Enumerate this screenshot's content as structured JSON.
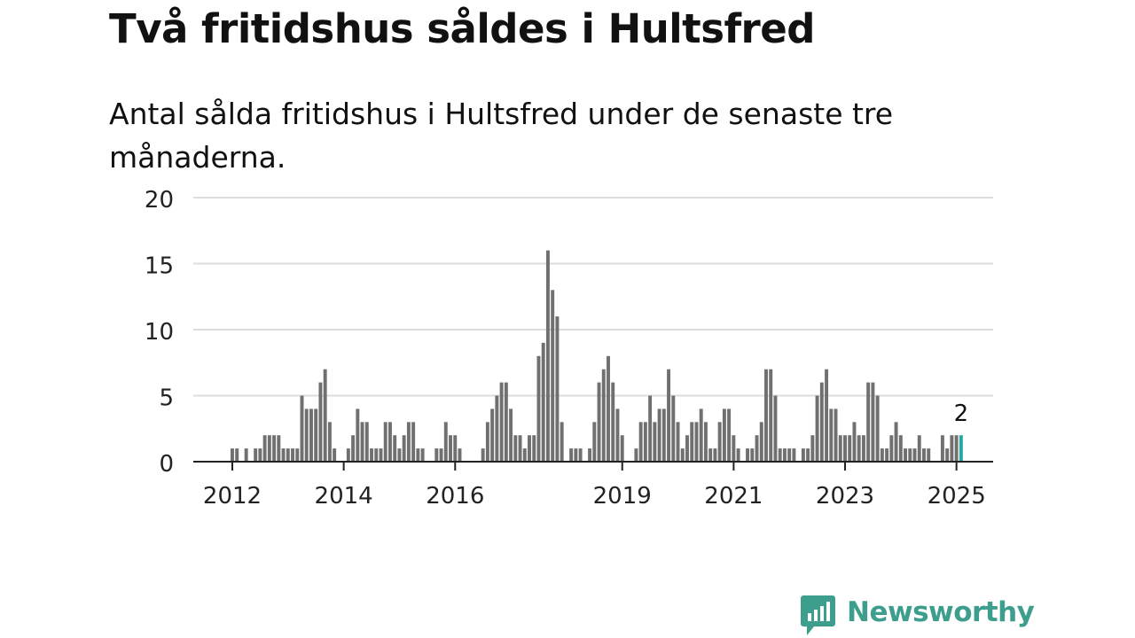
{
  "title": "Två fritidshus såldes i Hultsfred",
  "subtitle": "Antal sålda fritidshus i Hultsfred under de senaste tre månaderna.",
  "brand": {
    "name": "Newsworthy",
    "color": "#3d9e8e"
  },
  "chart_data": {
    "type": "bar",
    "title": "Två fritidshus såldes i Hultsfred",
    "subtitle": "Antal sålda fritidshus i Hultsfred under de senaste tre månaderna.",
    "start": "2011-06",
    "frequency": "monthly",
    "ylim": [
      0,
      20
    ],
    "yticks": [
      0,
      5,
      10,
      15,
      20
    ],
    "xticks": [
      2012,
      2014,
      2016,
      2019,
      2021,
      2023,
      2025
    ],
    "grid": true,
    "bar_color": "#707070",
    "highlight_color": "#2aa6a0",
    "highlight_label": "2",
    "values": [
      0,
      0,
      0,
      0,
      0,
      0,
      0,
      1,
      1,
      0,
      1,
      0,
      1,
      1,
      2,
      2,
      2,
      2,
      1,
      1,
      1,
      1,
      5,
      4,
      4,
      4,
      6,
      7,
      3,
      1,
      0,
      0,
      1,
      2,
      4,
      3,
      3,
      1,
      1,
      1,
      3,
      3,
      2,
      1,
      2,
      3,
      3,
      1,
      1,
      0,
      0,
      1,
      1,
      3,
      2,
      2,
      1,
      0,
      0,
      0,
      0,
      1,
      3,
      4,
      5,
      6,
      6,
      4,
      2,
      2,
      1,
      2,
      2,
      8,
      9,
      16,
      13,
      11,
      3,
      0,
      1,
      1,
      1,
      0,
      1,
      3,
      6,
      7,
      8,
      6,
      4,
      2,
      0,
      0,
      1,
      3,
      3,
      5,
      3,
      4,
      4,
      7,
      5,
      3,
      1,
      2,
      3,
      3,
      4,
      3,
      1,
      1,
      3,
      4,
      4,
      2,
      1,
      0,
      1,
      1,
      2,
      3,
      7,
      7,
      5,
      1,
      1,
      1,
      1,
      0,
      1,
      1,
      2,
      5,
      6,
      7,
      4,
      4,
      2,
      2,
      2,
      3,
      2,
      2,
      6,
      6,
      5,
      1,
      1,
      2,
      3,
      2,
      1,
      1,
      1,
      2,
      1,
      1,
      0,
      0,
      2,
      1,
      2,
      2,
      2
    ]
  }
}
